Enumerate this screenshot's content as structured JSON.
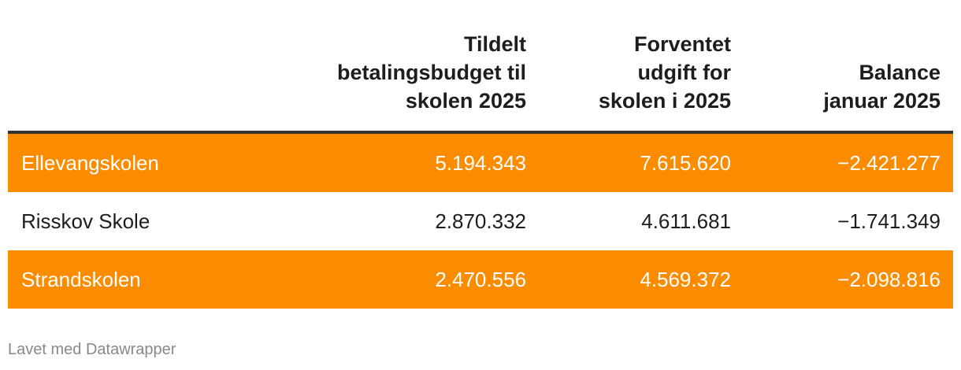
{
  "table": {
    "headers": {
      "name": "",
      "col_a": "Tildelt betalingsbudget til skolen 2025",
      "col_a_lines": [
        "Tildelt",
        "betalingsbudget til",
        "skolen 2025"
      ],
      "col_b_lines": [
        "Forventet",
        "udgift for",
        "skolen i 2025"
      ],
      "col_c_lines": [
        "Balance",
        "januar 2025"
      ]
    },
    "rows": [
      {
        "name": "Ellevangskolen",
        "a": "5.194.343",
        "b": "7.615.620",
        "c": "−2.421.277",
        "highlight": true
      },
      {
        "name": "Risskov Skole",
        "a": "2.870.332",
        "b": "4.611.681",
        "c": "−1.741.349",
        "highlight": false
      },
      {
        "name": "Strandskolen",
        "a": "2.470.556",
        "b": "4.569.372",
        "c": "−2.098.816",
        "highlight": true
      }
    ],
    "highlight_color": "#fb8c00"
  },
  "footer": {
    "credit": "Lavet med Datawrapper"
  }
}
